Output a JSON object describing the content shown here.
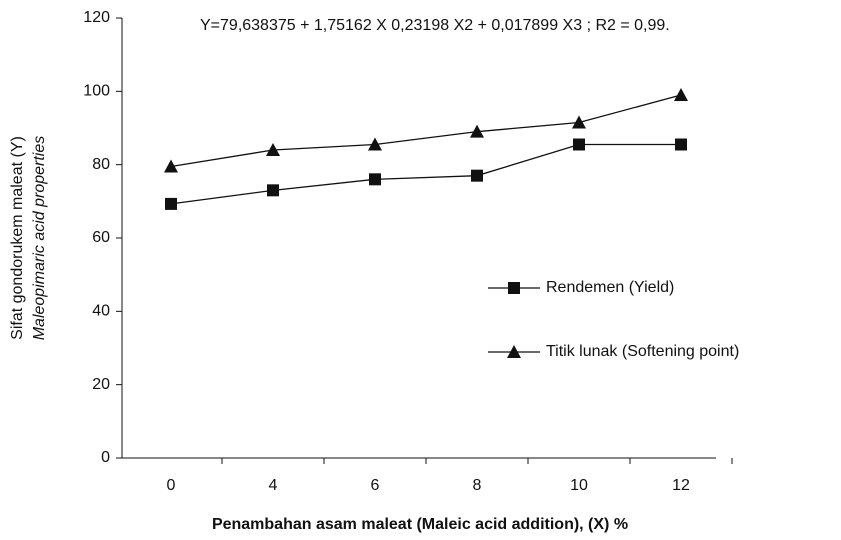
{
  "chart_data": {
    "type": "line",
    "annotation": "Y=79,638375 + 1,75162 X  0,23198 X2 + 0,017899 X3 ; R2 = 0,99.",
    "ylabel": [
      "Sifat gondorukem maleat (Y)",
      "Maleopimaric acid properties"
    ],
    "xlabel": "Penambahan asam maleat (Maleic acid addition), (X) %",
    "categories": [
      "0",
      "4",
      "6",
      "8",
      "10",
      "12"
    ],
    "series": [
      {
        "name": "Rendemen (Yield)",
        "color": "#111111",
        "marker": "square",
        "values": [
          69.3,
          73,
          76,
          77,
          85.5,
          85.5
        ]
      },
      {
        "name": "Titik lunak (Softening point)",
        "color": "#111111",
        "marker": "triangle",
        "values": [
          79.5,
          84,
          85.5,
          89,
          91.5,
          99
        ]
      }
    ],
    "ylim": [
      0,
      120
    ],
    "yticks": [
      0,
      20,
      40,
      60,
      80,
      100,
      120
    ],
    "grid": false
  }
}
